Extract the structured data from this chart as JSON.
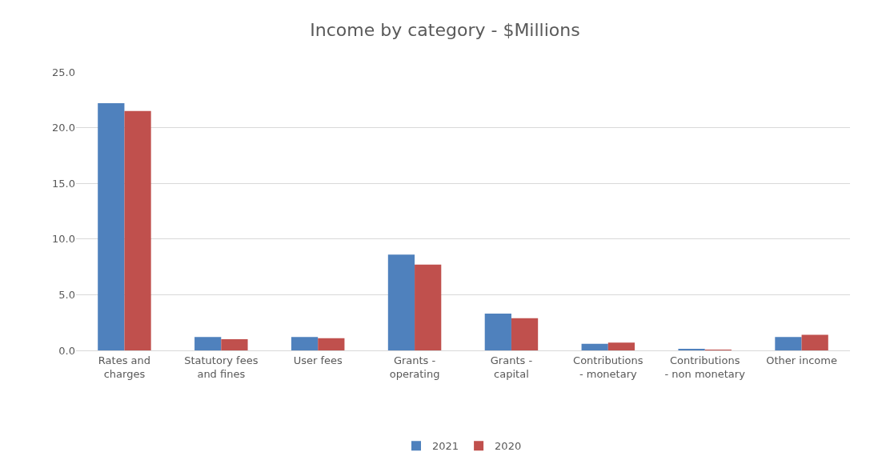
{
  "chart_data": {
    "type": "bar",
    "title": "Income by category - $Millions",
    "categories": [
      "Rates and charges",
      "Statutory fees and fines",
      "User fees",
      "Grants - operating",
      "Grants - capital",
      "Contributions - monetary",
      "Contributions - non monetary",
      "Other income"
    ],
    "series": [
      {
        "name": "2021",
        "color": "#4f81bd",
        "values": [
          22.2,
          1.2,
          1.2,
          8.6,
          3.3,
          0.6,
          0.1,
          1.2
        ]
      },
      {
        "name": "2020",
        "color": "#c0504d",
        "values": [
          21.5,
          1.0,
          1.1,
          7.7,
          2.9,
          0.7,
          0.05,
          1.4
        ]
      }
    ],
    "ylim": [
      0,
      25
    ],
    "yticks": [
      {
        "value": 0,
        "label": "0.0"
      },
      {
        "value": 5,
        "label": "5.0"
      },
      {
        "value": 10,
        "label": "10.0"
      },
      {
        "value": 15,
        "label": "15.0"
      },
      {
        "value": 20,
        "label": "20.0"
      },
      {
        "value": 25,
        "label": "25.0"
      }
    ],
    "grid": "y",
    "legend": "bottom"
  }
}
